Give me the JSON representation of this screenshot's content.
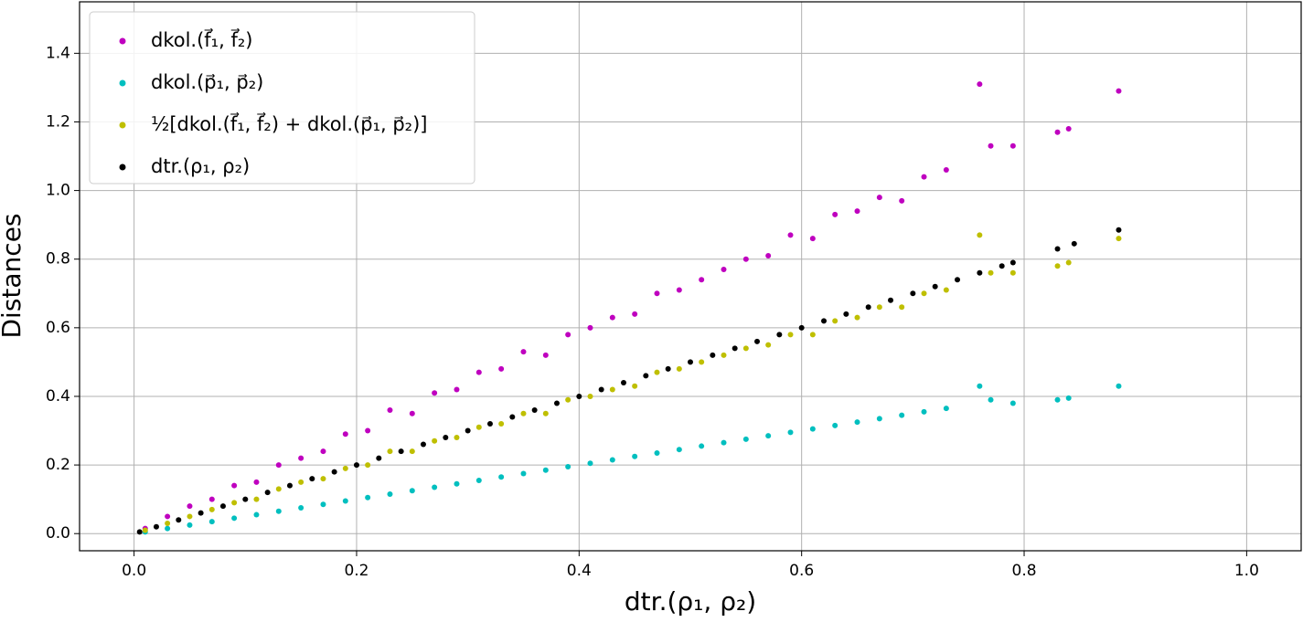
{
  "chart_data": {
    "type": "scatter",
    "xlabel": "dtr.(ρ₁, ρ₂)",
    "ylabel": "Distances",
    "xlim": [
      -0.049,
      1.049
    ],
    "ylim": [
      -0.05,
      1.55
    ],
    "xticks": [
      {
        "value": 0,
        "label": "0.0"
      },
      0.2,
      0.4,
      0.6,
      0.8,
      {
        "value": 1,
        "label": "1.0"
      }
    ],
    "yticks": [
      {
        "value": 0,
        "label": "0.0"
      },
      0.2,
      0.4,
      0.6,
      0.8,
      {
        "value": 1,
        "label": "1.0"
      },
      1.2,
      1.4
    ],
    "grid": true,
    "legend": "upper left",
    "series": [
      {
        "name": "dkol.(f⃗₁, f⃗₂)",
        "color": "#bf00bf",
        "x": [
          0.01,
          0.03,
          0.05,
          0.07,
          0.09,
          0.11,
          0.13,
          0.15,
          0.17,
          0.19,
          0.21,
          0.23,
          0.25,
          0.27,
          0.29,
          0.31,
          0.33,
          0.35,
          0.37,
          0.39,
          0.41,
          0.43,
          0.45,
          0.47,
          0.49,
          0.51,
          0.53,
          0.55,
          0.57,
          0.59,
          0.61,
          0.63,
          0.65,
          0.67,
          0.69,
          0.71,
          0.73,
          0.76,
          0.77,
          0.79,
          0.83,
          0.84,
          0.885
        ],
        "values": [
          0.015,
          0.05,
          0.08,
          0.1,
          0.14,
          0.15,
          0.2,
          0.22,
          0.24,
          0.29,
          0.3,
          0.36,
          0.35,
          0.41,
          0.42,
          0.47,
          0.48,
          0.53,
          0.52,
          0.58,
          0.6,
          0.63,
          0.64,
          0.7,
          0.71,
          0.74,
          0.77,
          0.8,
          0.81,
          0.87,
          0.86,
          0.93,
          0.94,
          0.98,
          0.97,
          1.04,
          1.06,
          1.31,
          1.13,
          1.13,
          1.17,
          1.18,
          1.29
        ]
      },
      {
        "name": "dkol.(p⃗₁, p⃗₂)",
        "color": "#00bfbf",
        "x": [
          0.01,
          0.03,
          0.05,
          0.07,
          0.09,
          0.11,
          0.13,
          0.15,
          0.17,
          0.19,
          0.21,
          0.23,
          0.25,
          0.27,
          0.29,
          0.31,
          0.33,
          0.35,
          0.37,
          0.39,
          0.41,
          0.43,
          0.45,
          0.47,
          0.49,
          0.51,
          0.53,
          0.55,
          0.57,
          0.59,
          0.61,
          0.63,
          0.65,
          0.67,
          0.69,
          0.71,
          0.73,
          0.76,
          0.77,
          0.79,
          0.83,
          0.84,
          0.885
        ],
        "values": [
          0.005,
          0.015,
          0.025,
          0.035,
          0.045,
          0.055,
          0.065,
          0.075,
          0.085,
          0.095,
          0.105,
          0.115,
          0.125,
          0.135,
          0.145,
          0.155,
          0.165,
          0.175,
          0.185,
          0.195,
          0.205,
          0.215,
          0.225,
          0.235,
          0.245,
          0.255,
          0.265,
          0.275,
          0.285,
          0.295,
          0.305,
          0.315,
          0.325,
          0.335,
          0.345,
          0.355,
          0.365,
          0.43,
          0.39,
          0.38,
          0.39,
          0.395,
          0.43
        ]
      },
      {
        "name": "½[dkol.(f⃗₁, f⃗₂) + dkol.(p⃗₁, p⃗₂)]",
        "color": "#bfbf00",
        "x": [
          0.01,
          0.03,
          0.05,
          0.07,
          0.09,
          0.11,
          0.13,
          0.15,
          0.17,
          0.19,
          0.21,
          0.23,
          0.25,
          0.27,
          0.29,
          0.31,
          0.33,
          0.35,
          0.37,
          0.39,
          0.41,
          0.43,
          0.45,
          0.47,
          0.49,
          0.51,
          0.53,
          0.55,
          0.57,
          0.59,
          0.61,
          0.63,
          0.65,
          0.67,
          0.69,
          0.71,
          0.73,
          0.76,
          0.77,
          0.79,
          0.83,
          0.84,
          0.885
        ],
        "values": [
          0.01,
          0.03,
          0.05,
          0.07,
          0.09,
          0.1,
          0.13,
          0.15,
          0.16,
          0.19,
          0.2,
          0.24,
          0.24,
          0.27,
          0.28,
          0.31,
          0.32,
          0.35,
          0.35,
          0.39,
          0.4,
          0.42,
          0.43,
          0.47,
          0.48,
          0.5,
          0.52,
          0.54,
          0.55,
          0.58,
          0.58,
          0.62,
          0.63,
          0.66,
          0.66,
          0.7,
          0.71,
          0.87,
          0.76,
          0.76,
          0.78,
          0.79,
          0.86
        ]
      },
      {
        "name": "dtr.(ρ₁, ρ₂)",
        "color": "#000000",
        "x": [
          0.005,
          0.02,
          0.04,
          0.06,
          0.08,
          0.1,
          0.12,
          0.14,
          0.16,
          0.18,
          0.2,
          0.22,
          0.24,
          0.26,
          0.28,
          0.3,
          0.32,
          0.34,
          0.36,
          0.38,
          0.4,
          0.42,
          0.44,
          0.46,
          0.48,
          0.5,
          0.52,
          0.54,
          0.56,
          0.58,
          0.6,
          0.62,
          0.64,
          0.66,
          0.68,
          0.7,
          0.72,
          0.74,
          0.76,
          0.78,
          0.79,
          0.83,
          0.845,
          0.885
        ],
        "values": [
          0.005,
          0.02,
          0.04,
          0.06,
          0.08,
          0.1,
          0.12,
          0.14,
          0.16,
          0.18,
          0.2,
          0.22,
          0.24,
          0.26,
          0.28,
          0.3,
          0.32,
          0.34,
          0.36,
          0.38,
          0.4,
          0.42,
          0.44,
          0.46,
          0.48,
          0.5,
          0.52,
          0.54,
          0.56,
          0.58,
          0.6,
          0.62,
          0.64,
          0.66,
          0.68,
          0.7,
          0.72,
          0.74,
          0.76,
          0.78,
          0.79,
          0.83,
          0.845,
          0.885
        ]
      }
    ]
  }
}
